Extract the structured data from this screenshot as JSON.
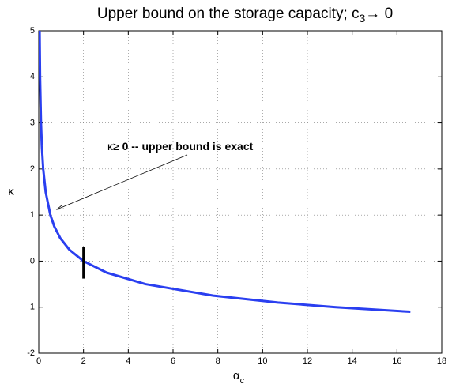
{
  "chart_data": {
    "type": "line",
    "title_parts": [
      "Upper bound on the storage capacity; c",
      "3",
      "→ 0"
    ],
    "xlabel_parts": [
      "α",
      "c"
    ],
    "ylabel": "κ",
    "annotation_parts": [
      "κ≥ ",
      "0 -- upper bound is exact"
    ],
    "xlim": [
      0,
      18
    ],
    "ylim": [
      -2,
      5
    ],
    "xticks": [
      0,
      2,
      4,
      6,
      8,
      10,
      12,
      14,
      16,
      18
    ],
    "yticks": [
      -2,
      -1,
      0,
      1,
      2,
      3,
      4,
      5
    ],
    "grid": true,
    "series": [
      {
        "color": "#2a3ff0",
        "width": 3,
        "x": [
          0.0385,
          0.0588,
          0.1,
          0.138,
          0.2,
          0.31,
          0.52,
          0.697,
          0.961,
          1.365,
          2,
          3.033,
          4.769,
          7.8,
          10.68,
          13.27,
          16.6
        ],
        "values": [
          5,
          4,
          3,
          2.5,
          2,
          1.5,
          1,
          0.75,
          0.5,
          0.25,
          0,
          -0.25,
          -0.5,
          -0.75,
          -0.9,
          -1,
          -1.1
        ]
      },
      {
        "color": "#000000",
        "width": 3,
        "x": [
          2,
          2
        ],
        "values": [
          0.3,
          -0.38
        ]
      }
    ]
  }
}
